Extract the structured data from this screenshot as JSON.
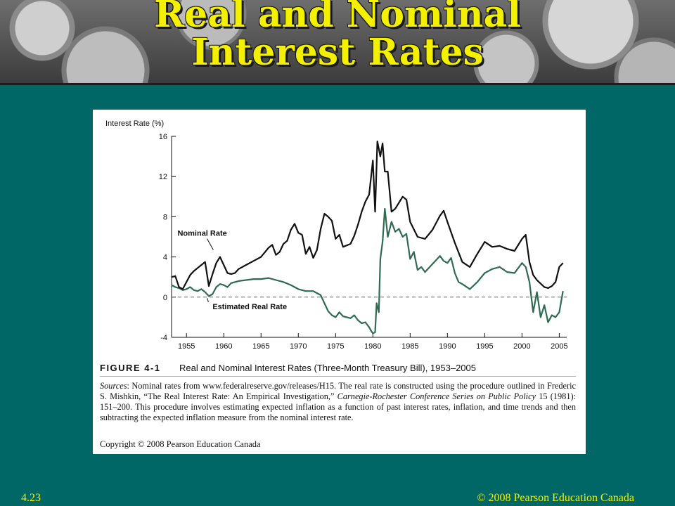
{
  "slide": {
    "title_line1": "Real and Nominal",
    "title_line2": "Interest Rates",
    "page_number": "4.23",
    "copyright_footer": "© 2008 Pearson Education Canada"
  },
  "figure": {
    "label": "FIGURE 4-1",
    "title": "Real and Nominal Interest Rates (Three-Month Treasury Bill), 1953–2005",
    "sources_prefix": "Sources",
    "sources_text": ": Nominal rates from www.federalreserve.gov/releases/H15. The real rate is constructed using the procedure outlined in Frederic S. Mishkin, “The Real Interest Rate: An Empirical Investigation,” ",
    "sources_journal": "Carnegie-Rochester Conference Series on Public Policy",
    "sources_text2": " 15 (1981): 151–200. This procedure involves estimating expected inflation as a function of past interest rates, inflation, and time trends and then subtracting the expected inflation measure from the nominal interest rate.",
    "copyright": "Copyright © 2008 Pearson Education Canada"
  },
  "colors": {
    "background": "#006666",
    "title": "#f3f000",
    "nominal": "#111111",
    "real": "#2f6b52"
  },
  "chart_data": {
    "type": "line",
    "ylabel": "Interest Rate (%)",
    "xlim": [
      1953,
      2006
    ],
    "ylim": [
      -4,
      16
    ],
    "xticks": [
      1955,
      1960,
      1965,
      1970,
      1975,
      1980,
      1985,
      1990,
      1995,
      2000,
      2005
    ],
    "yticks": [
      -4,
      0,
      4,
      8,
      12,
      16
    ],
    "zero_line": "dashed",
    "series": [
      {
        "name": "Nominal Rate",
        "x": [
          1953,
          1953.5,
          1954,
          1954.5,
          1955,
          1955.5,
          1956,
          1956.5,
          1957,
          1957.5,
          1958,
          1958.5,
          1959,
          1959.5,
          1960,
          1960.5,
          1961,
          1961.5,
          1962,
          1963,
          1964,
          1965,
          1966,
          1966.5,
          1967,
          1967.5,
          1968,
          1968.5,
          1969,
          1969.5,
          1970,
          1970.5,
          1971,
          1971.5,
          1972,
          1972.5,
          1973,
          1973.5,
          1974,
          1974.5,
          1975,
          1975.5,
          1976,
          1977,
          1977.5,
          1978,
          1978.5,
          1979,
          1979.5,
          1980,
          1980.3,
          1980.6,
          1981,
          1981.3,
          1981.6,
          1982,
          1982.5,
          1983,
          1984,
          1984.5,
          1985,
          1986,
          1987,
          1988,
          1989,
          1989.5,
          1990,
          1991,
          1992,
          1993,
          1994,
          1995,
          1996,
          1997,
          1998,
          1999,
          2000,
          2000.5,
          2001,
          2001.5,
          2002,
          2003,
          2003.5,
          2004,
          2004.5,
          2005,
          2005.5
        ],
        "y": [
          2.0,
          2.1,
          1.0,
          0.8,
          1.5,
          2.2,
          2.6,
          2.9,
          3.2,
          3.5,
          1.1,
          2.3,
          3.4,
          4.0,
          3.2,
          2.4,
          2.3,
          2.4,
          2.8,
          3.2,
          3.6,
          4.0,
          4.9,
          5.2,
          4.2,
          4.5,
          5.3,
          5.6,
          6.7,
          7.3,
          6.4,
          6.2,
          4.3,
          5.0,
          3.9,
          4.7,
          6.8,
          8.3,
          8.0,
          7.6,
          5.8,
          6.2,
          5.0,
          5.3,
          6.1,
          7.2,
          8.5,
          9.5,
          10.2,
          13.6,
          8.5,
          15.5,
          14.0,
          15.3,
          12.5,
          12.5,
          8.5,
          8.8,
          10.0,
          9.7,
          7.5,
          6.0,
          5.8,
          6.7,
          8.1,
          8.6,
          7.5,
          5.4,
          3.5,
          3.0,
          4.3,
          5.5,
          5.0,
          5.1,
          4.8,
          4.6,
          5.8,
          6.2,
          3.5,
          2.2,
          1.7,
          1.0,
          0.9,
          1.1,
          1.5,
          3.0,
          3.4
        ]
      },
      {
        "name": "Estimated Real Rate",
        "x": [
          1953,
          1953.5,
          1954,
          1954.5,
          1955,
          1955.5,
          1956,
          1956.5,
          1957,
          1957.5,
          1958,
          1958.5,
          1959,
          1959.5,
          1960,
          1960.5,
          1961,
          1962,
          1963,
          1964,
          1965,
          1966,
          1967,
          1968,
          1969,
          1970,
          1971,
          1972,
          1972.5,
          1973,
          1973.5,
          1974,
          1974.5,
          1975,
          1975.5,
          1976,
          1977,
          1977.5,
          1978,
          1978.5,
          1979,
          1979.5,
          1979.8,
          1980,
          1980.3,
          1980.5,
          1980.8,
          1981,
          1981.3,
          1981.6,
          1982,
          1982.5,
          1983,
          1983.5,
          1984,
          1984.5,
          1985,
          1985.5,
          1986,
          1986.5,
          1987,
          1988,
          1989,
          1989.5,
          1990,
          1990.5,
          1991,
          1991.5,
          1992,
          1993,
          1994,
          1995,
          1996,
          1997,
          1998,
          1999,
          2000,
          2000.5,
          2001,
          2001.5,
          2002,
          2002.5,
          2003,
          2003.5,
          2004,
          2004.5,
          2005,
          2005.5
        ],
        "y": [
          1.2,
          1.0,
          0.9,
          0.7,
          0.8,
          1.0,
          0.7,
          0.6,
          0.8,
          0.5,
          0.1,
          0.3,
          1.0,
          1.3,
          1.2,
          1.0,
          1.4,
          1.6,
          1.7,
          1.8,
          1.8,
          1.9,
          1.7,
          1.5,
          1.2,
          0.8,
          0.6,
          0.6,
          0.4,
          0.2,
          -0.6,
          -1.4,
          -1.8,
          -2.0,
          -1.5,
          -1.9,
          -2.1,
          -1.8,
          -2.3,
          -2.6,
          -2.5,
          -3.0,
          -3.4,
          -3.6,
          -3.5,
          -0.6,
          -1.5,
          3.8,
          5.5,
          8.8,
          6.0,
          7.5,
          6.5,
          6.8,
          6.0,
          6.3,
          3.8,
          4.5,
          2.7,
          3.0,
          2.5,
          3.3,
          4.1,
          3.6,
          3.4,
          3.9,
          2.4,
          1.5,
          1.3,
          0.8,
          1.5,
          2.4,
          2.8,
          3.0,
          2.5,
          2.4,
          3.4,
          3.0,
          1.5,
          -1.5,
          0.5,
          -2.0,
          -0.8,
          -2.5,
          -1.8,
          -2.0,
          -1.5,
          0.6
        ]
      }
    ],
    "annotations": [
      {
        "text": "Nominal Rate",
        "x": 1958.6,
        "y": 4.7,
        "label_x": 1953.8,
        "label_y": 6.1
      },
      {
        "text": "Estimated Real Rate",
        "x": 1957.8,
        "y": -0.1,
        "label_x": 1958.5,
        "label_y": -1.2
      }
    ]
  }
}
